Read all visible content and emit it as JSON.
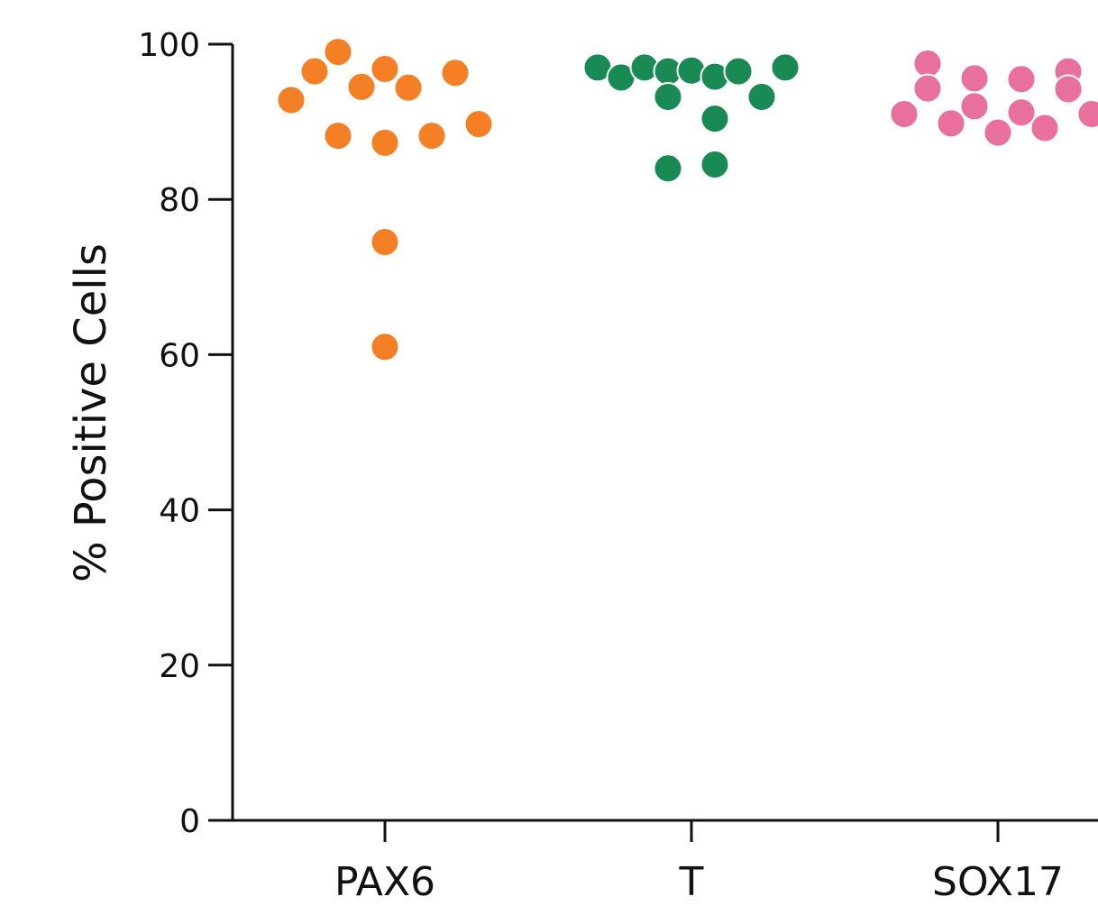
{
  "chart_data": {
    "type": "scatter",
    "title": "",
    "xlabel": "",
    "ylabel": "% Positive Cells",
    "ylim": [
      0,
      100
    ],
    "yticks": [
      0,
      20,
      40,
      60,
      80,
      100
    ],
    "grid": false,
    "categories": [
      "PAX6",
      "T",
      "SOX17"
    ],
    "series": [
      {
        "category": "PAX6",
        "color": "#F47F24",
        "points": [
          {
            "offset": -2,
            "value": 99
          },
          {
            "offset": -3,
            "value": 96.5
          },
          {
            "offset": 0,
            "value": 96.8
          },
          {
            "offset": 3,
            "value": 96.3
          },
          {
            "offset": -4,
            "value": 92.8
          },
          {
            "offset": -1,
            "value": 94.5
          },
          {
            "offset": 1,
            "value": 94.4
          },
          {
            "offset": -2,
            "value": 88.2
          },
          {
            "offset": 0,
            "value": 87.3
          },
          {
            "offset": 2,
            "value": 88.2
          },
          {
            "offset": 4,
            "value": 89.7
          },
          {
            "offset": 0,
            "value": 74.5
          },
          {
            "offset": 0,
            "value": 61
          }
        ]
      },
      {
        "category": "T",
        "color": "#1A8A55",
        "points": [
          {
            "offset": -4,
            "value": 97
          },
          {
            "offset": -3,
            "value": 95.7
          },
          {
            "offset": -2,
            "value": 97
          },
          {
            "offset": -1,
            "value": 96.5
          },
          {
            "offset": 0,
            "value": 96.6
          },
          {
            "offset": 1,
            "value": 95.8
          },
          {
            "offset": 2,
            "value": 96.5
          },
          {
            "offset": 4,
            "value": 97
          },
          {
            "offset": -1,
            "value": 93.2
          },
          {
            "offset": 3,
            "value": 93.2
          },
          {
            "offset": 1,
            "value": 90.4
          },
          {
            "offset": -1,
            "value": 84
          },
          {
            "offset": 1,
            "value": 84.5
          }
        ]
      },
      {
        "category": "SOX17",
        "color": "#E96F9C",
        "points": [
          {
            "offset": -3,
            "value": 97.5
          },
          {
            "offset": -3,
            "value": 94.3
          },
          {
            "offset": -1,
            "value": 95.6
          },
          {
            "offset": 1,
            "value": 95.5
          },
          {
            "offset": 3,
            "value": 96.5
          },
          {
            "offset": 3,
            "value": 94.2
          },
          {
            "offset": -4,
            "value": 91
          },
          {
            "offset": -2,
            "value": 89.8
          },
          {
            "offset": -1,
            "value": 92
          },
          {
            "offset": 0,
            "value": 88.6
          },
          {
            "offset": 1,
            "value": 91.2
          },
          {
            "offset": 2,
            "value": 89.2
          },
          {
            "offset": 4,
            "value": 91
          }
        ]
      }
    ]
  }
}
